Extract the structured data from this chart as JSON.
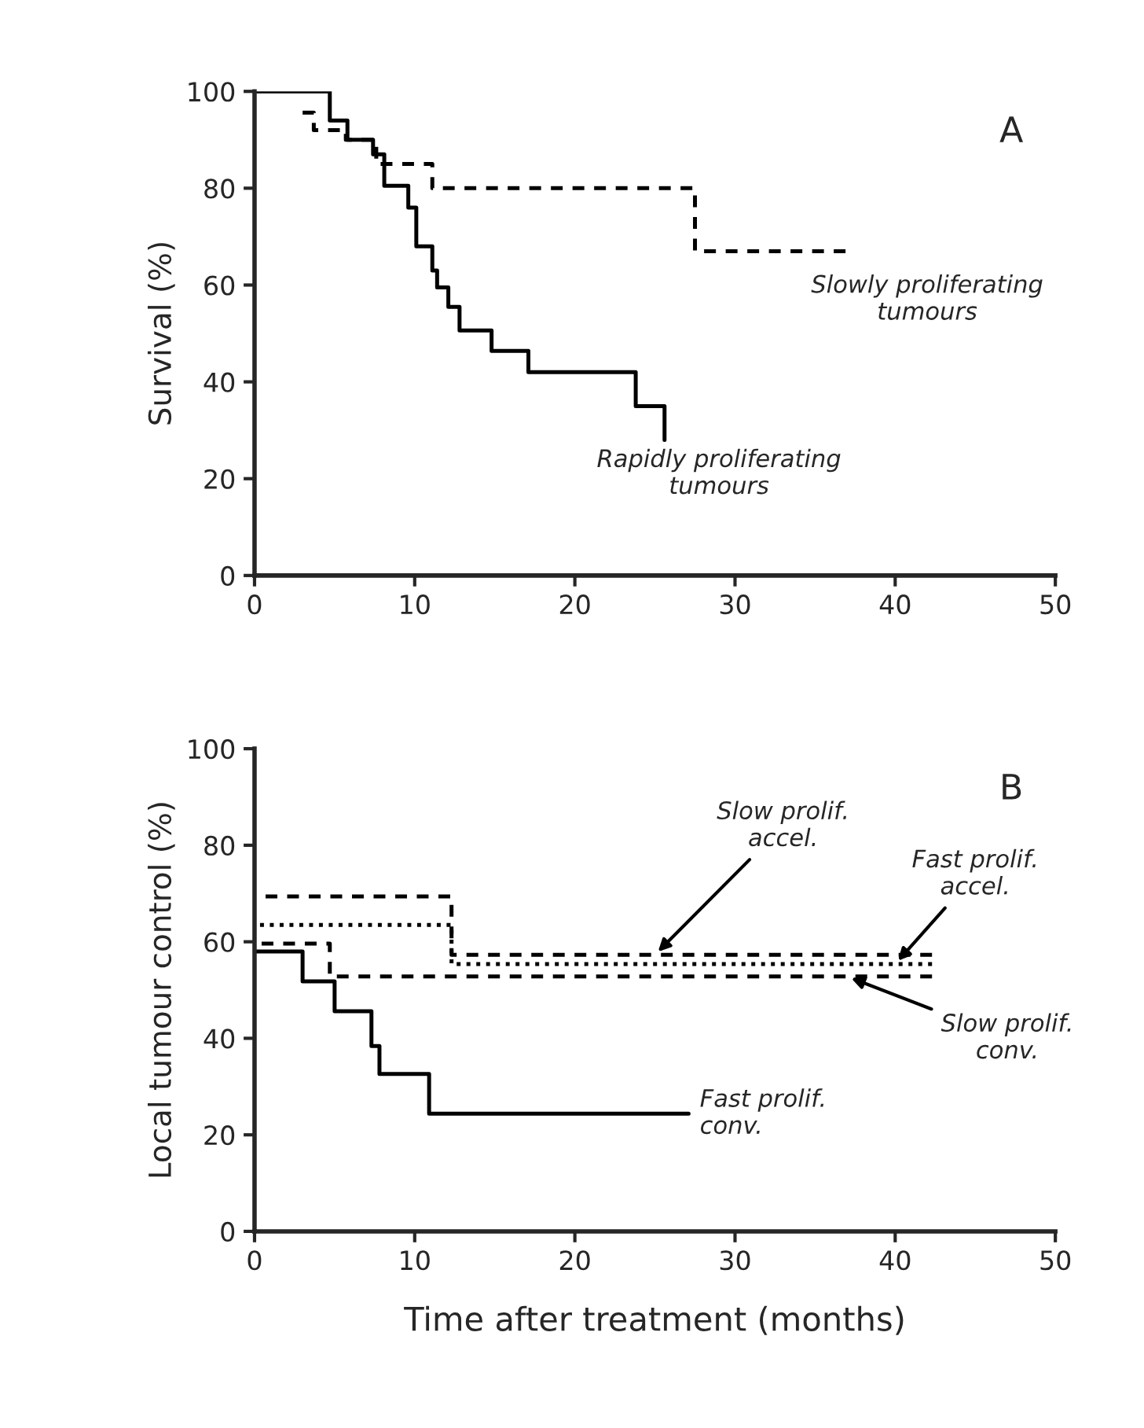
{
  "chart_data": [
    {
      "type": "step",
      "ylabel": "Survival (%)",
      "xlim": [
        0,
        50
      ],
      "ylim": [
        0,
        100
      ],
      "xticks": [
        0,
        10,
        20,
        30,
        40,
        50
      ],
      "yticks": [
        0,
        20,
        40,
        60,
        80,
        100
      ],
      "grid": false,
      "annotations": [
        "A"
      ],
      "series": [
        {
          "name": "Rapidly proliferating\ntumours",
          "color": "#000000",
          "line_style": "solid",
          "x": [
            0,
            4.7,
            5.8,
            7.4,
            8.1,
            9.6,
            10.1,
            11.1,
            11.4,
            12.1,
            12.8,
            14.8,
            17.1,
            23.8,
            25.6,
            25.6
          ],
          "values": [
            100,
            94,
            90,
            87,
            80.5,
            76,
            68,
            63,
            59.5,
            55.5,
            50.6,
            46.4,
            42,
            35,
            28,
            28
          ]
        },
        {
          "name": "Slowly proliferating\ntumours",
          "color": "#000000",
          "line_style": "dashed",
          "x": [
            3,
            3.7,
            5.7,
            7.6,
            11.1,
            27.5,
            36.9
          ],
          "values": [
            95.6,
            92,
            90,
            85,
            80,
            67,
            67
          ]
        }
      ]
    },
    {
      "type": "step",
      "xlabel": "Time after treatment (months)",
      "ylabel": "Local tumour control (%)",
      "xlim": [
        0,
        50
      ],
      "ylim": [
        0,
        100
      ],
      "xticks": [
        0,
        10,
        20,
        30,
        40,
        50
      ],
      "yticks": [
        0,
        20,
        40,
        60,
        80,
        100
      ],
      "grid": false,
      "annotations": [
        "B"
      ],
      "series": [
        {
          "name": "Slow prolif.\naccel.",
          "color": "#000000",
          "line_style": "dashed",
          "x": [
            0,
            12.3,
            42.3
          ],
          "values": [
            69.4,
            57.3,
            57.3
          ]
        },
        {
          "name": "Fast prolif.\naccel.",
          "color": "#000000",
          "line_style": "dotted",
          "x": [
            0,
            12.3,
            42.3
          ],
          "values": [
            63.5,
            55.4,
            55.4
          ]
        },
        {
          "name": "Slow prolif.\nconv.",
          "color": "#000000",
          "line_style": "dashed",
          "x": [
            0,
            4.7,
            42.3
          ],
          "values": [
            59.6,
            52.8,
            52.8
          ]
        },
        {
          "name": "Fast prolif.\nconv.",
          "color": "#000000",
          "line_style": "solid",
          "x": [
            0,
            3.0,
            5.0,
            7.3,
            7.8,
            10.9,
            27.1
          ],
          "values": [
            58,
            51.8,
            45.6,
            38.4,
            32.6,
            24.4,
            24.4
          ]
        }
      ]
    }
  ]
}
